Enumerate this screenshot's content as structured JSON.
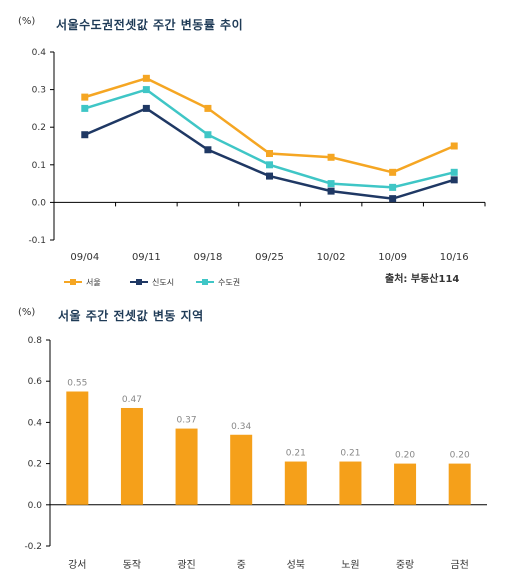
{
  "chart_data": [
    {
      "type": "line",
      "unit_label": "(%)",
      "title": "서울수도권전셋값 주간 변동률 추이",
      "source": "출처: 부동산114",
      "categories": [
        "09/04",
        "09/11",
        "09/18",
        "09/25",
        "10/02",
        "10/09",
        "10/16"
      ],
      "ylim": [
        -0.1,
        0.4
      ],
      "yticks": [
        "0.4",
        "0.3",
        "0.2",
        "0.1",
        "0.0",
        "-0.1"
      ],
      "series": [
        {
          "name": "서울",
          "color": "#f5a623",
          "values": [
            0.28,
            0.33,
            0.25,
            0.13,
            0.12,
            0.08,
            0.15
          ]
        },
        {
          "name": "신도시",
          "color": "#1f3864",
          "values": [
            0.18,
            0.25,
            0.14,
            0.07,
            0.03,
            0.01,
            0.06
          ]
        },
        {
          "name": "수도권",
          "color": "#3fc6c6",
          "values": [
            0.25,
            0.3,
            0.18,
            0.1,
            0.05,
            0.04,
            0.08
          ]
        }
      ],
      "legend_placement": "bottom-left"
    },
    {
      "type": "bar",
      "unit_label": "(%)",
      "title": "서울 주간 전셋값 변동 지역",
      "categories": [
        "강서",
        "동작",
        "광진",
        "중",
        "성북",
        "노원",
        "중랑",
        "금천"
      ],
      "values": [
        0.55,
        0.47,
        0.37,
        0.34,
        0.21,
        0.21,
        0.2,
        0.2
      ],
      "value_labels": [
        "0.55",
        "0.47",
        "0.37",
        "0.34",
        "0.21",
        "0.21",
        "0.20",
        "0.20"
      ],
      "ylim": [
        -0.2,
        0.8
      ],
      "yticks": [
        "0.8",
        "0.6",
        "0.4",
        "0.2",
        "0.0",
        "-0.2"
      ],
      "color": "#f5a01a"
    }
  ]
}
